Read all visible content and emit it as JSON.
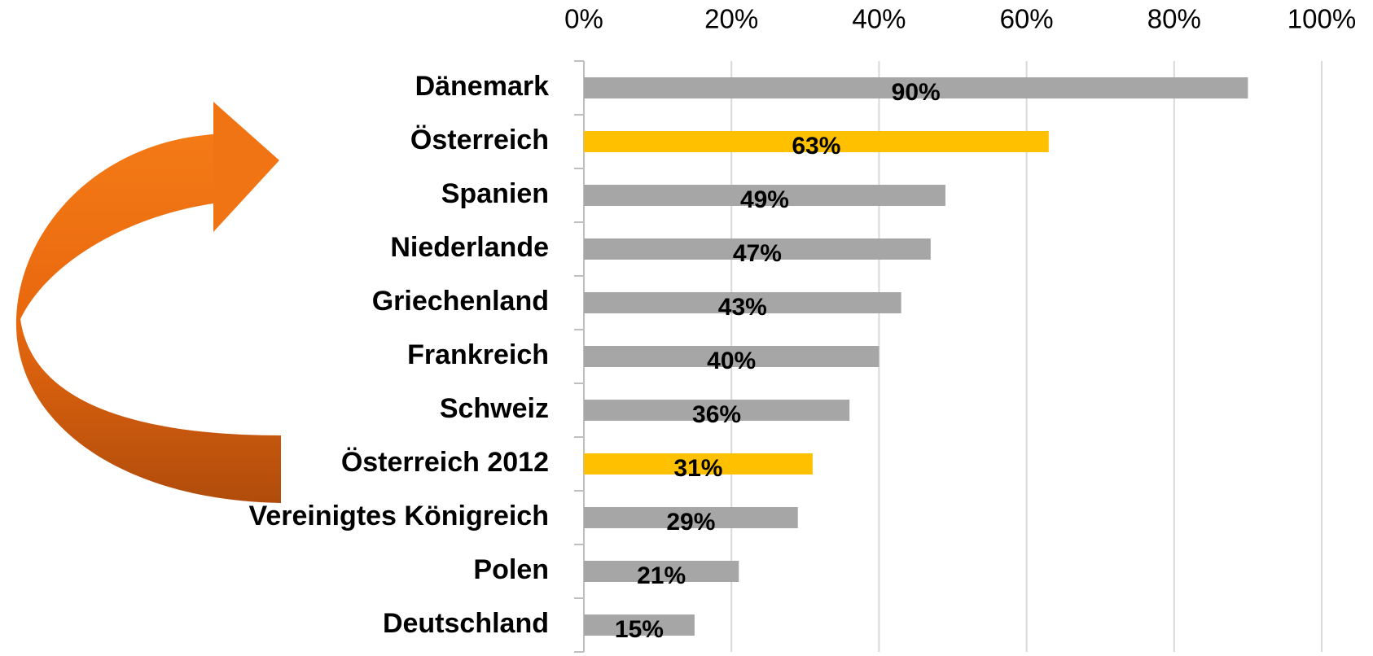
{
  "chart_data": {
    "type": "barh",
    "categories": [
      "Dänemark",
      "Österreich",
      "Spanien",
      "Niederlande",
      "Griechenland",
      "Frankreich",
      "Schweiz",
      "Österreich 2012",
      "Vereinigtes Königreich",
      "Polen",
      "Deutschland"
    ],
    "values": [
      90,
      63,
      49,
      47,
      43,
      40,
      36,
      31,
      29,
      21,
      15
    ],
    "value_labels": [
      "90%",
      "63%",
      "49%",
      "47%",
      "43%",
      "40%",
      "36%",
      "31%",
      "29%",
      "21%",
      "15%"
    ],
    "colors": [
      "#a6a6a6",
      "#ffc000",
      "#a6a6a6",
      "#a6a6a6",
      "#a6a6a6",
      "#a6a6a6",
      "#a6a6a6",
      "#ffc000",
      "#a6a6a6",
      "#a6a6a6",
      "#a6a6a6"
    ],
    "xlim": [
      0,
      100
    ],
    "xticks": [
      {
        "value": 0,
        "label": "0%"
      },
      {
        "value": 20,
        "label": "20%"
      },
      {
        "value": 40,
        "label": "40%"
      },
      {
        "value": 60,
        "label": "60%"
      },
      {
        "value": 80,
        "label": "80%"
      },
      {
        "value": 100,
        "label": "100%"
      }
    ],
    "grid": true
  }
}
